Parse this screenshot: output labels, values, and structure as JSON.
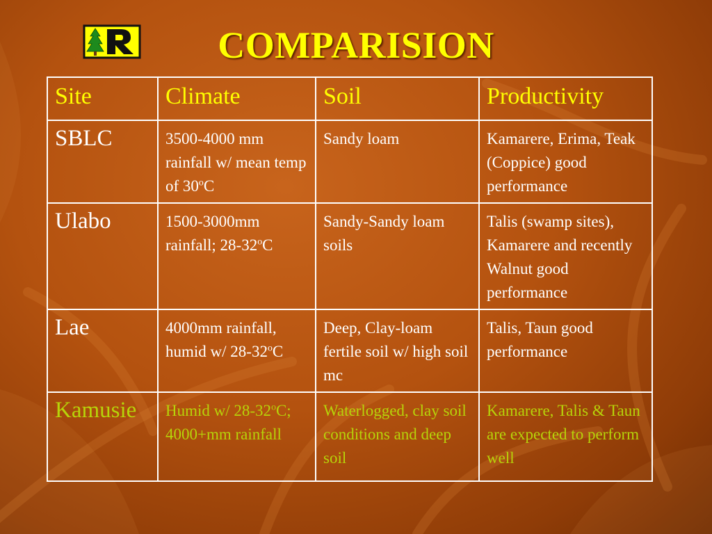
{
  "slide": {
    "title": "COMPARISION",
    "logo_letter": "R",
    "colors": {
      "title": "#ffff00",
      "header_text": "#ffff00",
      "body_text": "#ffffff",
      "highlight_row_text": "#b7d40a",
      "background": "#b4520f"
    }
  },
  "table": {
    "headers": [
      "Site",
      "Climate",
      "Soil",
      "Productivity"
    ],
    "rows": [
      {
        "site": "SBLC",
        "climate": {
          "before": "3500-4000 mm rainfall w/ mean temp of 30",
          "sup": "o",
          "after": "C"
        },
        "soil": "Sandy loam",
        "productivity": "Kamarere, Erima, Teak (Coppice) good performance"
      },
      {
        "site": "Ulabo",
        "climate": {
          "before": "1500-3000mm rainfall; 28-32",
          "sup": "o",
          "after": "C"
        },
        "soil": "Sandy-Sandy loam soils",
        "productivity": "Talis (swamp sites), Kamarere and recently Walnut good performance"
      },
      {
        "site": "Lae",
        "climate": {
          "before": "4000mm rainfall, humid w/ 28-32",
          "sup": "o",
          "after": "C"
        },
        "soil": "Deep, Clay-loam fertile soil w/ high soil mc",
        "productivity": "Talis, Taun good performance"
      },
      {
        "site": "Kamusie",
        "climate": {
          "before": "Humid w/ 28-32",
          "sup": "o",
          "after": "C; 4000+mm rainfall"
        },
        "soil": "Waterlogged, clay soil conditions and deep soil",
        "productivity": "Kamarere, Talis & Taun are expected to perform well"
      }
    ]
  }
}
